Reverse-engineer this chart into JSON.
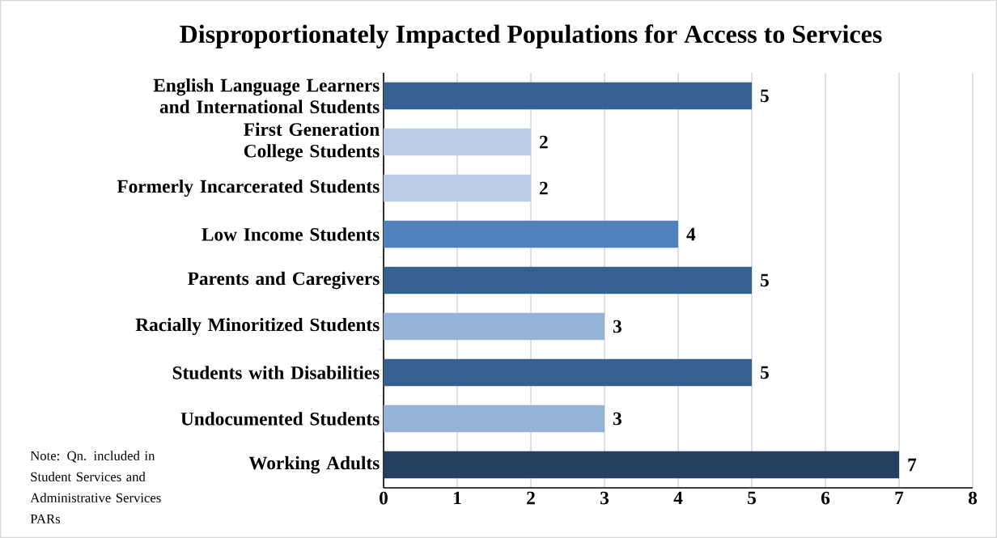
{
  "chart_data": {
    "type": "bar",
    "orientation": "horizontal",
    "title": "Disproportionately Impacted Populations for Access to Services",
    "categories": [
      "English Language Learners and International Students",
      "First Generation College Students",
      "Formerly Incarcerated Students",
      "Low Income Students",
      "Parents and Caregivers",
      "Racially Minoritized Students",
      "Students with Disabilities",
      "Undocumented Students",
      "Working Adults"
    ],
    "values": [
      5,
      2,
      2,
      4,
      5,
      3,
      5,
      3,
      7
    ],
    "colors": [
      "#36608f",
      "#b9cde5",
      "#b9cde5",
      "#4f81bd",
      "#36608f",
      "#95b3d7",
      "#36608f",
      "#95b3d7",
      "#243f60"
    ],
    "xlim": [
      0,
      8
    ],
    "xticks": [
      0,
      1,
      2,
      3,
      4,
      5,
      6,
      7,
      8
    ],
    "grid": "x",
    "data_labels": true,
    "annotations": [
      "Note: Qn. included in Student Services and Administrative Services PARs"
    ]
  }
}
